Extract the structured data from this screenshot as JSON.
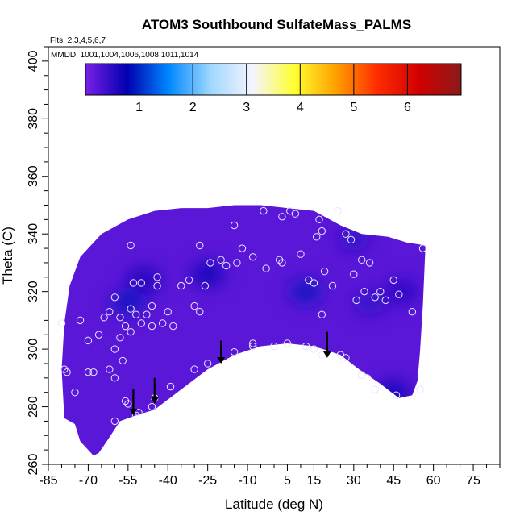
{
  "chart_data": {
    "type": "heatmap",
    "title": "ATOM3 Southbound SulfateMass_PALMS",
    "subtitle_flights": "Flts: 2,3,4,5,6,7",
    "subtitle_mmdd": "MMDD: 1001,1004,1006,1008,1011,1014",
    "xlabel": "Latitude (deg N)",
    "ylabel": "Theta (C)",
    "xlim": [
      -85,
      85
    ],
    "ylim": [
      260,
      405
    ],
    "x_ticks": [
      -85,
      -70,
      -55,
      -40,
      -25,
      -10,
      5,
      15,
      30,
      45,
      60,
      75
    ],
    "y_ticks": [
      260,
      280,
      300,
      320,
      340,
      360,
      380,
      400
    ],
    "colorbar": {
      "range": [
        0,
        7
      ],
      "ticks": [
        1,
        2,
        3,
        4,
        5,
        6
      ],
      "colors": [
        "#7a1fe6",
        "#0000b0",
        "#0088ff",
        "#9fd8ff",
        "#f4f4ff",
        "#ffff30",
        "#ffa000",
        "#ff2a00",
        "#d00000",
        "#8b1a1a"
      ]
    },
    "field_upper_boundary": [
      [
        -79,
        309
      ],
      [
        -77,
        322
      ],
      [
        -73,
        332
      ],
      [
        -65,
        340
      ],
      [
        -55,
        345
      ],
      [
        -45,
        348
      ],
      [
        -35,
        349
      ],
      [
        -25,
        349
      ],
      [
        -15,
        350
      ],
      [
        -5,
        350
      ],
      [
        5,
        349
      ],
      [
        15,
        348
      ],
      [
        25,
        343
      ],
      [
        33,
        340
      ],
      [
        43,
        339
      ],
      [
        50,
        337
      ],
      [
        57,
        336
      ]
    ],
    "field_lower_boundary": [
      [
        57,
        336
      ],
      [
        56,
        315
      ],
      [
        55,
        300
      ],
      [
        54,
        289
      ],
      [
        52,
        284
      ],
      [
        47,
        283
      ],
      [
        40,
        288
      ],
      [
        32,
        293
      ],
      [
        25,
        298
      ],
      [
        15,
        301
      ],
      [
        5,
        302
      ],
      [
        -5,
        301
      ],
      [
        -15,
        298
      ],
      [
        -25,
        293
      ],
      [
        -35,
        286
      ],
      [
        -45,
        279
      ],
      [
        -52,
        277
      ],
      [
        -58,
        275
      ],
      [
        -63,
        268
      ],
      [
        -66,
        264
      ],
      [
        -68,
        263
      ],
      [
        -70,
        265
      ],
      [
        -73,
        268
      ],
      [
        -75,
        274
      ],
      [
        -79,
        276
      ],
      [
        -80,
        293
      ],
      [
        -79,
        309
      ]
    ],
    "dark_regions": [
      {
        "lat": -49,
        "theta": 324,
        "value": 0.7
      },
      {
        "lat": -55,
        "theta": 316,
        "value": 0.9
      },
      {
        "lat": -25,
        "theta": 326,
        "value": 0.8
      },
      {
        "lat": 30,
        "theta": 338,
        "value": 0.5
      },
      {
        "lat": 36,
        "theta": 316,
        "value": 0.5
      },
      {
        "lat": 48,
        "theta": 320,
        "value": 0.6
      },
      {
        "lat": 45,
        "theta": 285,
        "value": 0.8
      },
      {
        "lat": 12,
        "theta": 320,
        "value": 0.9
      }
    ],
    "background_value": 0.2,
    "sample_points": [
      [
        -80,
        309
      ],
      [
        -79,
        293
      ],
      [
        -78,
        292
      ],
      [
        -75,
        285
      ],
      [
        -73,
        310
      ],
      [
        -70,
        292
      ],
      [
        -68,
        292
      ],
      [
        -70,
        303
      ],
      [
        -66,
        305
      ],
      [
        -64,
        311
      ],
      [
        -62,
        313
      ],
      [
        -60,
        318
      ],
      [
        -58,
        311
      ],
      [
        -56,
        308
      ],
      [
        -54,
        314
      ],
      [
        -52,
        312
      ],
      [
        -50,
        309
      ],
      [
        -48,
        312
      ],
      [
        -46,
        308
      ],
      [
        -44,
        322
      ],
      [
        -40,
        313
      ],
      [
        -38,
        308
      ],
      [
        -35,
        322
      ],
      [
        -32,
        324
      ],
      [
        -30,
        315
      ],
      [
        -28,
        313
      ],
      [
        -26,
        322
      ],
      [
        -24,
        330
      ],
      [
        -20,
        331
      ],
      [
        -18,
        329
      ],
      [
        -14,
        330
      ],
      [
        -12,
        335
      ],
      [
        -8,
        332
      ],
      [
        -3,
        328
      ],
      [
        2,
        331
      ],
      [
        3,
        330
      ],
      [
        3,
        346
      ],
      [
        6,
        348
      ],
      [
        8,
        347
      ],
      [
        10,
        333
      ],
      [
        13,
        324
      ],
      [
        15,
        323
      ],
      [
        16,
        339
      ],
      [
        17,
        345
      ],
      [
        18,
        341
      ],
      [
        19,
        327
      ],
      [
        22,
        322
      ],
      [
        24,
        348
      ],
      [
        27,
        340
      ],
      [
        29,
        338
      ],
      [
        30,
        326
      ],
      [
        31,
        317
      ],
      [
        33,
        331
      ],
      [
        34,
        320
      ],
      [
        36,
        330
      ],
      [
        38,
        318
      ],
      [
        40,
        320
      ],
      [
        42,
        317
      ],
      [
        45,
        324
      ],
      [
        47,
        319
      ],
      [
        52,
        313
      ],
      [
        56,
        335
      ],
      [
        -60,
        300
      ],
      [
        -58,
        304
      ],
      [
        -57,
        296
      ],
      [
        -60,
        290
      ],
      [
        -62,
        293
      ],
      [
        -54,
        336
      ],
      [
        -53,
        323
      ],
      [
        -50,
        323
      ],
      [
        -46,
        315
      ],
      [
        -42,
        309
      ],
      [
        -56,
        282
      ],
      [
        -55,
        281
      ],
      [
        -51,
        278
      ],
      [
        -45,
        283
      ],
      [
        -39,
        287
      ],
      [
        -30,
        293
      ],
      [
        -25,
        295
      ],
      [
        -15,
        299
      ],
      [
        -8,
        301
      ],
      [
        0,
        301
      ],
      [
        5,
        302
      ],
      [
        12,
        301
      ],
      [
        15,
        300
      ],
      [
        18,
        298
      ],
      [
        25,
        298
      ],
      [
        27,
        297
      ],
      [
        33,
        291
      ],
      [
        35,
        290
      ],
      [
        38,
        286
      ],
      [
        46,
        284
      ],
      [
        55,
        286
      ],
      [
        -60,
        275
      ],
      [
        -52,
        277
      ],
      [
        -46,
        280
      ],
      [
        -8,
        302
      ],
      [
        -54,
        306
      ],
      [
        -44,
        325
      ],
      [
        -28,
        336
      ],
      [
        -15,
        343
      ],
      [
        -4,
        348
      ],
      [
        18,
        312
      ]
    ],
    "arrows": [
      {
        "lat": -53,
        "theta_from": 286,
        "theta_to": 277
      },
      {
        "lat": -45,
        "theta_from": 290,
        "theta_to": 281
      },
      {
        "lat": -20,
        "theta_from": 303,
        "theta_to": 295
      },
      {
        "lat": 20,
        "theta_from": 306,
        "theta_to": 297
      }
    ],
    "grid": false,
    "legend": "colorbar-top"
  }
}
